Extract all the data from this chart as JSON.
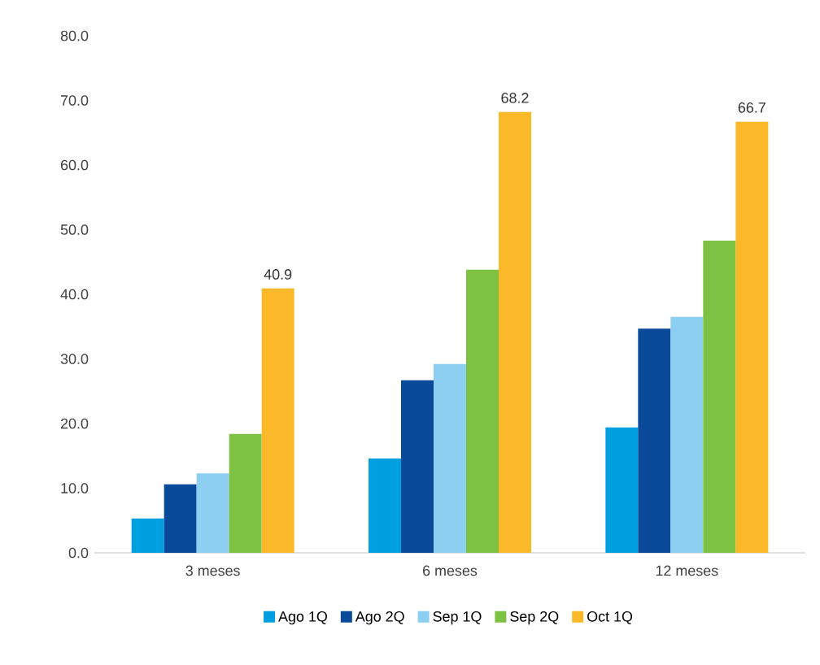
{
  "chart_data": {
    "type": "bar",
    "categories": [
      "3 meses",
      "6 meses",
      "12 meses"
    ],
    "series": [
      {
        "name": "Ago 1Q",
        "color": "#00a0e0",
        "values": [
          5.3,
          14.6,
          19.4
        ]
      },
      {
        "name": "Ago 2Q",
        "color": "#0a4a9a",
        "values": [
          10.6,
          26.7,
          34.7
        ]
      },
      {
        "name": "Sep 1Q",
        "color": "#8ccff0",
        "values": [
          12.3,
          29.2,
          36.5
        ]
      },
      {
        "name": "Sep 2Q",
        "color": "#7dc242",
        "values": [
          18.4,
          43.8,
          48.3
        ]
      },
      {
        "name": "Oct 1Q",
        "color": "#fbb829",
        "values": [
          40.9,
          68.2,
          66.7
        ],
        "value_labels": [
          "40.9",
          "68.2",
          "66.7"
        ]
      }
    ],
    "ylim": [
      0,
      80
    ],
    "yticks": [
      {
        "value": 0,
        "label": "0.0"
      },
      {
        "value": 10,
        "label": "10.0"
      },
      {
        "value": 20,
        "label": "20.0"
      },
      {
        "value": 30,
        "label": "30.0"
      },
      {
        "value": 40,
        "label": "40.0"
      },
      {
        "value": 50,
        "label": "50.0"
      },
      {
        "value": 60,
        "label": "60.0"
      },
      {
        "value": 70,
        "label": "70.0"
      },
      {
        "value": 80,
        "label": "80.0"
      }
    ],
    "legend": "bottom"
  }
}
